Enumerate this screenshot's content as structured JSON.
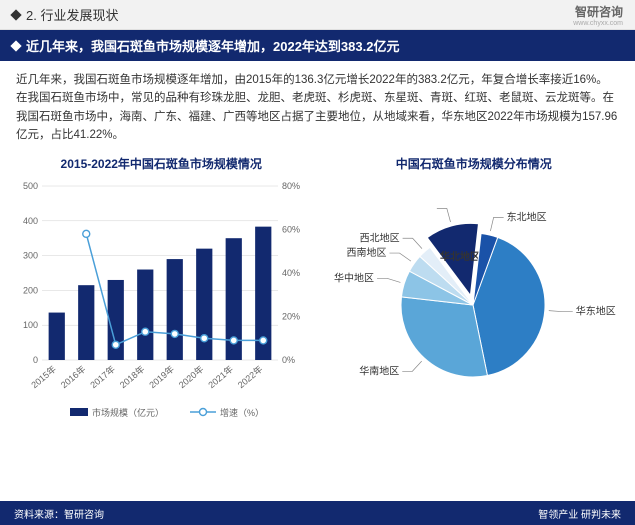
{
  "header": {
    "section_label": "2. 行业发展现状",
    "brand_name": "智研咨询",
    "brand_url": "www.chyxx.com"
  },
  "title_bar": {
    "text": "近几年来，我国石斑鱼市场规模逐年增加，2022年达到383.2亿元"
  },
  "paragraph": "近几年来，我国石斑鱼市场规模逐年增加，由2015年的136.3亿元增长2022年的383.2亿元，年复合增长率接近16%。在我国石斑鱼市场中，常见的品种有珍珠龙胆、龙胆、老虎斑、杉虎斑、东星斑、青斑、红斑、老鼠斑、云龙斑等。在我国石斑鱼市场中，海南、广东、福建、广西等地区占据了主要地位，从地域来看，华东地区2022年市场规模为157.96亿元，占比41.22%。",
  "bar_chart": {
    "title": "2015-2022年中国石斑鱼市场规模情况",
    "type": "combo-bar-line",
    "categories": [
      "2015年",
      "2016年",
      "2017年",
      "2018年",
      "2019年",
      "2020年",
      "2021年",
      "2022年"
    ],
    "bar_values": [
      136.3,
      215,
      230,
      260,
      290,
      320,
      350,
      383.2
    ],
    "line_values": [
      null,
      58,
      7,
      13,
      12,
      10,
      9,
      9
    ],
    "y1_max": 500,
    "y1_step": 100,
    "y2_max": 80,
    "y2_step": 20,
    "y2_suffix": "%",
    "bar_color": "#12296f",
    "line_color": "#4a9fd8",
    "marker_color": "#4a9fd8",
    "marker_inner": "#ffffff",
    "grid_color": "#d0d0d0",
    "legend_bar": "市场规模（亿元）",
    "legend_line": "增速（%）"
  },
  "pie_chart": {
    "title": "中国石斑鱼市场规模分布情况",
    "type": "pie",
    "slices": [
      {
        "label": "华东地区",
        "value": 41.22,
        "color": "#2d7ec5",
        "exploded": false
      },
      {
        "label": "华南地区",
        "value": 30,
        "color": "#5aa6d8",
        "exploded": false
      },
      {
        "label": "华中地区",
        "value": 6,
        "color": "#8cc4e6",
        "exploded": false
      },
      {
        "label": "西南地区",
        "value": 4,
        "color": "#bddcf0",
        "exploded": false
      },
      {
        "label": "西北地区",
        "value": 3,
        "color": "#e3eef8",
        "exploded": false
      },
      {
        "label": "华北地区",
        "value": 12,
        "color": "#12296f",
        "exploded": true
      },
      {
        "label": "东北地区",
        "value": 3.78,
        "color": "#1a52a8",
        "exploded": false
      }
    ]
  },
  "footer": {
    "source": "资料来源：智研咨询",
    "tagline": "智领产业  研判未来"
  }
}
